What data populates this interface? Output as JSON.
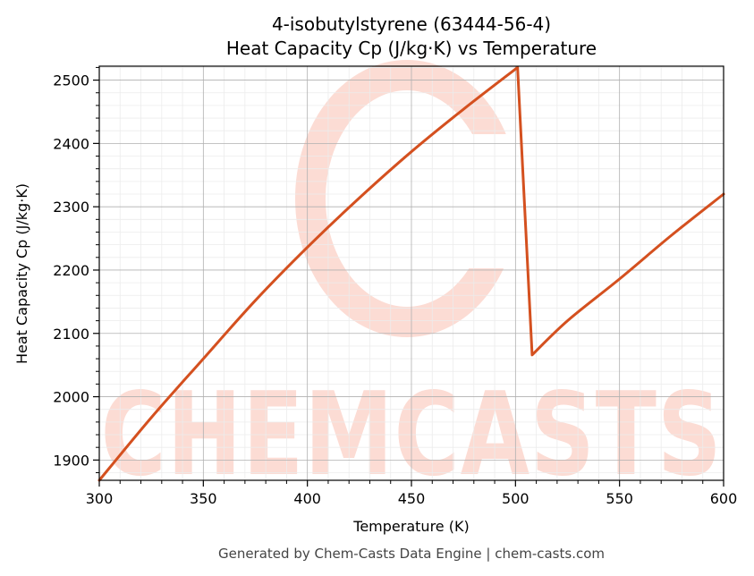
{
  "chart_data": {
    "type": "line",
    "title": "4-isobutylstyrene (63444-56-4)",
    "subtitle": "Heat Capacity Cp (J/kg·K) vs Temperature",
    "xlabel": "Temperature (K)",
    "ylabel": "Heat Capacity Cp (J/kg·K)",
    "xlim": [
      300,
      600
    ],
    "ylim": [
      1868,
      2522
    ],
    "x_ticks": [
      300,
      350,
      400,
      450,
      500,
      550,
      600
    ],
    "y_ticks": [
      1900,
      2000,
      2100,
      2200,
      2300,
      2400,
      2500
    ],
    "grid": true,
    "line_color": "#d4501f",
    "series": [
      {
        "x": [
          300,
          325,
          350,
          375,
          400,
          425,
          450,
          475,
          501,
          508,
          525,
          550,
          575,
          600
        ],
        "values": [
          1868,
          1967,
          2060,
          2152,
          2236,
          2314,
          2387,
          2454,
          2520,
          2066,
          2120,
          2186,
          2255,
          2320
        ]
      }
    ]
  },
  "watermark": {
    "text": "CHEMCASTS",
    "color": "#fcdcd4"
  },
  "footer": "Generated by Chem-Casts Data Engine | chem-casts.com"
}
